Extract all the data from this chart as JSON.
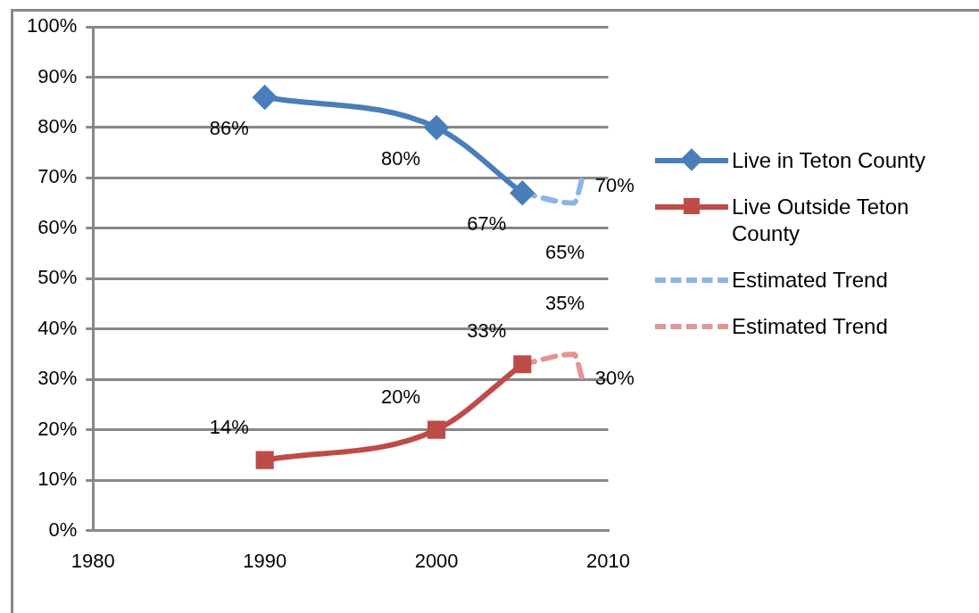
{
  "chart_data": {
    "type": "line",
    "xlim": [
      1980,
      2010
    ],
    "xticks": [
      1980,
      1990,
      2000,
      2010
    ],
    "ylim": [
      0,
      100
    ],
    "yticks": [
      {
        "value": 0,
        "label": "0%"
      },
      {
        "value": 10,
        "label": "10%"
      },
      {
        "value": 20,
        "label": "20%"
      },
      {
        "value": 30,
        "label": "30%"
      },
      {
        "value": 40,
        "label": "40%"
      },
      {
        "value": 50,
        "label": "50%"
      },
      {
        "value": 60,
        "label": "60%"
      },
      {
        "value": 70,
        "label": "70%"
      },
      {
        "value": 80,
        "label": "80%"
      },
      {
        "value": 90,
        "label": "90%"
      },
      {
        "value": 100,
        "label": "100%"
      }
    ],
    "grid": "y",
    "legend": "right",
    "series": [
      {
        "name": "Live in Teton County",
        "color": "#4a7ebb",
        "x": [
          1990,
          2000,
          2005
        ],
        "values": [
          86,
          80,
          67
        ],
        "value_labels": [
          "86%",
          "80%",
          "67%"
        ],
        "marker": "diamond",
        "line_style": "solid"
      },
      {
        "name": "Live Outside Teton County",
        "color": "#be4b48",
        "x": [
          1990,
          2000,
          2005
        ],
        "values": [
          14,
          20,
          33
        ],
        "value_labels": [
          "14%",
          "20%",
          "33%"
        ],
        "marker": "square",
        "line_style": "solid"
      },
      {
        "name": "Estimated Trend",
        "color": "#8eb4e3",
        "x": [
          2005,
          2008,
          2008.5
        ],
        "values": [
          67,
          65,
          70
        ],
        "value_labels": [
          null,
          "65%",
          "70%"
        ],
        "marker": "none",
        "line_style": "dashed"
      },
      {
        "name": "Estimated Trend",
        "color": "#e09694",
        "x": [
          2005,
          2008,
          2008.5
        ],
        "values": [
          33,
          35,
          30
        ],
        "value_labels": [
          null,
          "35%",
          "30%"
        ],
        "marker": "none",
        "line_style": "dashed"
      }
    ]
  }
}
